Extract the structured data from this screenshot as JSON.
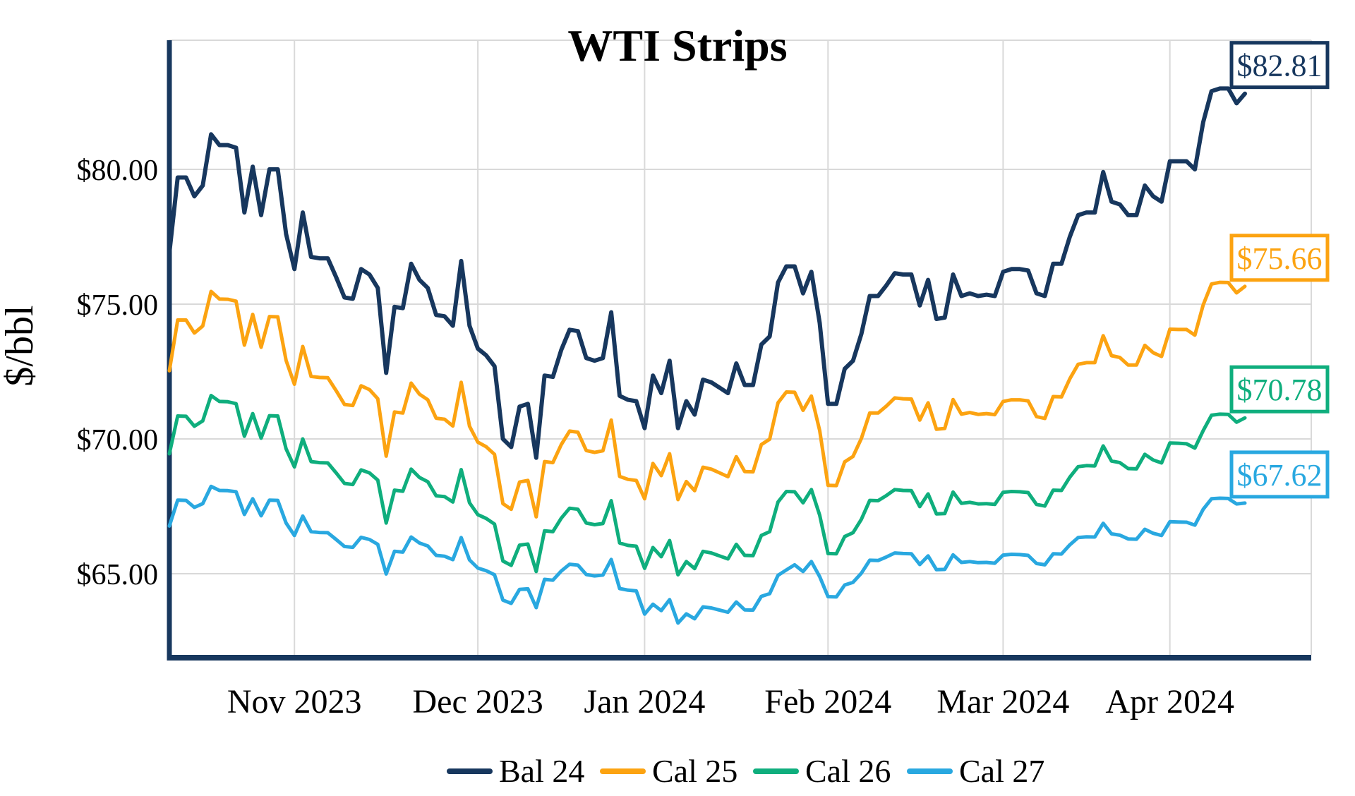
{
  "chart_data": {
    "type": "line",
    "title": "WTI Strips",
    "ylabel": "$/bbl",
    "xlabel": "",
    "grid": true,
    "legend_position": "bottom-center",
    "ylim": [
      62.2,
      84.8
    ],
    "y_axis": {
      "ticks": [
        {
          "value": 80,
          "label": "$80.00"
        },
        {
          "value": 75,
          "label": "$75.00"
        },
        {
          "value": 70,
          "label": "$70.00"
        },
        {
          "value": 65,
          "label": "$65.00"
        }
      ]
    },
    "x_axis": {
      "unit": "trading days, mid-Oct 2023 to mid-Apr 2024",
      "n_points": 130,
      "ticks": [
        {
          "index": 15,
          "label": "Nov 2023"
        },
        {
          "index": 37,
          "label": "Dec 2023"
        },
        {
          "index": 57,
          "label": "Jan 2024"
        },
        {
          "index": 79,
          "label": "Feb 2024"
        },
        {
          "index": 100,
          "label": "Mar 2024"
        },
        {
          "index": 120,
          "label": "Apr 2024"
        }
      ]
    },
    "colors": {
      "grid": "#d9d9d9",
      "axis": "#17375e",
      "background": "#ffffff",
      "text": "#000000"
    },
    "series": [
      {
        "name": "Bal 24",
        "color": "#17375e",
        "end_label": "$82.81",
        "end_value": 82.81,
        "values": [
          76.9,
          79.7,
          79.7,
          79.0,
          79.4,
          81.3,
          80.9,
          80.9,
          80.8,
          78.4,
          80.1,
          78.3,
          80.0,
          80.0,
          77.6,
          76.3,
          78.4,
          76.75,
          76.7,
          76.7,
          76.0,
          75.25,
          75.2,
          76.3,
          76.1,
          75.6,
          72.45,
          74.9,
          74.85,
          76.5,
          75.9,
          75.6,
          74.6,
          74.55,
          74.2,
          76.6,
          74.2,
          73.35,
          73.1,
          72.7,
          70.0,
          69.7,
          71.2,
          71.3,
          69.3,
          72.35,
          72.3,
          73.3,
          74.05,
          74.0,
          73.0,
          72.9,
          73.0,
          74.7,
          71.6,
          71.45,
          71.4,
          70.4,
          72.35,
          71.7,
          72.9,
          70.4,
          71.4,
          70.9,
          72.2,
          72.1,
          71.9,
          71.7,
          72.8,
          72.0,
          72.0,
          73.5,
          73.8,
          75.8,
          76.4,
          76.4,
          75.4,
          76.2,
          74.3,
          71.3,
          71.3,
          72.6,
          72.9,
          73.9,
          75.3,
          75.3,
          75.7,
          76.15,
          76.1,
          76.1,
          74.95,
          75.9,
          74.45,
          74.5,
          76.1,
          75.3,
          75.4,
          75.3,
          75.35,
          75.3,
          76.2,
          76.3,
          76.3,
          76.25,
          75.4,
          75.3,
          76.5,
          76.5,
          77.5,
          78.3,
          78.4,
          78.4,
          79.9,
          78.8,
          78.7,
          78.3,
          78.3,
          79.4,
          79.0,
          78.8,
          80.3,
          80.3,
          80.3,
          80.0,
          81.75,
          82.9,
          83.0,
          83.0,
          82.45,
          82.81
        ]
      },
      {
        "name": "Cal 25",
        "color": "#fca311",
        "end_label": "$75.66",
        "end_value": 75.66,
        "values": [
          72.53,
          74.41,
          74.41,
          73.93,
          74.19,
          75.47,
          75.19,
          75.18,
          75.11,
          73.48,
          74.62,
          73.4,
          74.54,
          74.53,
          72.91,
          72.03,
          73.43,
          72.32,
          72.28,
          72.27,
          71.79,
          71.28,
          71.24,
          71.97,
          71.83,
          71.49,
          69.36,
          71.0,
          70.96,
          72.07,
          71.66,
          71.45,
          70.77,
          70.73,
          70.48,
          72.1,
          70.47,
          69.88,
          69.71,
          69.43,
          67.6,
          67.39,
          68.4,
          68.46,
          67.11,
          69.16,
          69.12,
          69.79,
          70.29,
          70.25,
          69.57,
          69.5,
          69.56,
          70.7,
          68.61,
          68.5,
          68.46,
          67.78,
          69.09,
          68.64,
          69.45,
          67.75,
          68.42,
          68.08,
          68.95,
          68.88,
          68.74,
          68.6,
          69.34,
          68.79,
          68.78,
          69.79,
          69.99,
          71.34,
          71.74,
          71.73,
          71.06,
          71.59,
          70.31,
          68.28,
          68.27,
          69.15,
          69.35,
          70.02,
          70.96,
          70.96,
          71.22,
          71.52,
          71.49,
          71.48,
          70.7,
          71.34,
          70.36,
          70.39,
          71.46,
          70.92,
          70.98,
          70.91,
          70.94,
          70.9,
          71.39,
          71.45,
          71.45,
          71.41,
          70.83,
          70.76,
          71.57,
          71.56,
          72.23,
          72.77,
          72.83,
          72.83,
          73.83,
          73.09,
          73.02,
          72.74,
          72.74,
          73.47,
          73.2,
          73.06,
          74.07,
          74.06,
          74.06,
          73.85,
          74.97,
          75.75,
          75.81,
          75.8,
          75.42,
          75.66
        ]
      },
      {
        "name": "Cal 26",
        "color": "#0fae7d",
        "end_label": "$70.78",
        "end_value": 70.78,
        "values": [
          69.45,
          70.85,
          70.84,
          70.47,
          70.67,
          71.61,
          71.39,
          71.38,
          71.31,
          70.1,
          70.94,
          70.03,
          70.86,
          70.85,
          69.63,
          68.96,
          70.0,
          69.16,
          69.12,
          69.11,
          68.74,
          68.35,
          68.31,
          68.85,
          68.74,
          68.47,
          66.88,
          68.1,
          68.06,
          68.88,
          68.57,
          68.41,
          67.89,
          67.86,
          67.66,
          68.86,
          67.63,
          67.19,
          67.05,
          66.84,
          65.47,
          65.31,
          66.06,
          66.1,
          65.08,
          66.59,
          66.56,
          67.06,
          67.43,
          67.39,
          66.88,
          66.82,
          66.86,
          67.71,
          66.14,
          66.05,
          66.02,
          65.2,
          65.97,
          65.63,
          66.23,
          64.96,
          65.45,
          65.19,
          65.83,
          65.77,
          65.66,
          65.55,
          66.09,
          65.68,
          65.67,
          66.42,
          66.56,
          67.66,
          68.05,
          68.04,
          67.63,
          68.12,
          67.17,
          65.75,
          65.74,
          66.38,
          66.52,
          67.02,
          67.72,
          67.71,
          67.9,
          68.12,
          68.09,
          68.08,
          67.49,
          67.96,
          67.22,
          67.23,
          68.03,
          67.61,
          67.65,
          67.59,
          67.6,
          67.57,
          68.02,
          68.05,
          68.04,
          68.01,
          67.57,
          67.51,
          68.1,
          68.09,
          68.58,
          68.97,
          69.01,
          69.0,
          69.74,
          69.18,
          69.12,
          68.9,
          68.89,
          69.43,
          69.22,
          69.11,
          69.85,
          69.84,
          69.82,
          69.66,
          70.31,
          70.88,
          70.92,
          70.91,
          70.62,
          70.78
        ]
      },
      {
        "name": "Cal 27",
        "color": "#29a8e0",
        "end_label": "$67.62",
        "end_value": 67.62,
        "values": [
          66.77,
          67.73,
          67.72,
          67.46,
          67.6,
          68.24,
          68.09,
          68.08,
          68.04,
          67.2,
          67.78,
          67.15,
          67.73,
          67.72,
          66.88,
          66.42,
          67.14,
          66.56,
          66.53,
          66.52,
          66.27,
          66.01,
          65.98,
          66.35,
          66.27,
          66.09,
          64.99,
          65.83,
          65.8,
          66.36,
          66.14,
          66.03,
          65.68,
          65.65,
          65.52,
          66.34,
          65.51,
          65.21,
          65.11,
          64.96,
          64.02,
          63.9,
          64.42,
          64.44,
          63.74,
          64.79,
          64.76,
          65.1,
          65.35,
          65.32,
          64.97,
          64.92,
          64.95,
          65.53,
          64.45,
          64.39,
          64.36,
          63.5,
          63.87,
          63.63,
          64.04,
          63.17,
          63.51,
          63.33,
          63.77,
          63.73,
          63.65,
          63.57,
          63.95,
          63.66,
          63.65,
          64.16,
          64.26,
          64.94,
          65.14,
          65.33,
          65.08,
          65.45,
          64.89,
          64.15,
          64.14,
          64.58,
          64.68,
          65.02,
          65.5,
          65.49,
          65.62,
          65.77,
          65.75,
          65.74,
          65.34,
          65.66,
          65.15,
          65.16,
          65.7,
          65.42,
          65.45,
          65.41,
          65.42,
          65.39,
          65.69,
          65.72,
          65.71,
          65.68,
          65.38,
          65.33,
          65.74,
          65.73,
          66.07,
          66.34,
          66.37,
          66.36,
          66.87,
          66.48,
          66.43,
          66.29,
          66.28,
          66.65,
          66.5,
          66.42,
          66.93,
          66.92,
          66.91,
          66.8,
          67.39,
          67.78,
          67.8,
          67.79,
          67.59,
          67.62
        ]
      }
    ]
  },
  "layout_note_visible_elements_only": "line chart with boxed last-price callouts and bottom legend"
}
